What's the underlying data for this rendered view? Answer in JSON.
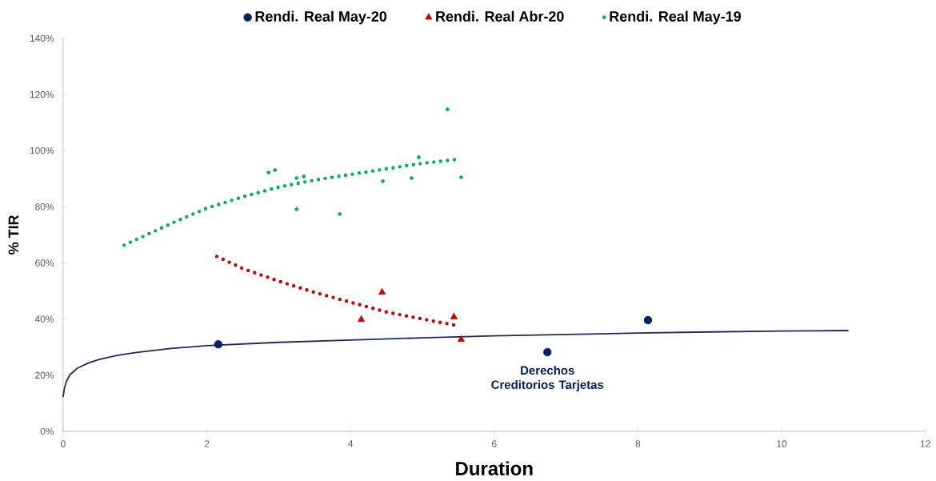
{
  "chart_data": {
    "type": "scatter",
    "xlabel": "Duration",
    "ylabel": "% TIR",
    "legend": "top",
    "grid": false,
    "xlim": [
      0,
      12
    ],
    "xticks": [
      0,
      2,
      4,
      6,
      8,
      10,
      12
    ],
    "ylim": [
      0,
      140
    ],
    "yticks": [
      {
        "value": 0,
        "label": "0%"
      },
      {
        "value": 20,
        "label": "20%"
      },
      {
        "value": 40,
        "label": "40%"
      },
      {
        "value": 60,
        "label": "60%"
      },
      {
        "value": 80,
        "label": "80%"
      },
      {
        "value": 100,
        "label": "100%"
      },
      {
        "value": 120,
        "label": "120%"
      },
      {
        "value": 140,
        "label": "140%"
      }
    ],
    "series": [
      {
        "name": "Rendi. Real May-20",
        "marker": "circle",
        "color": "#002060",
        "x": [
          2.16,
          6.74,
          8.14
        ],
        "values": [
          31.0,
          28.2,
          39.6
        ]
      },
      {
        "name": "Rendi. Real Abr-20",
        "marker": "triangle",
        "color": "#c00000",
        "x": [
          4.15,
          4.44,
          5.44,
          5.54
        ],
        "values": [
          39.8,
          49.5,
          40.7,
          32.7
        ]
      },
      {
        "name": "Rendi. Real May-19",
        "marker": "circle",
        "color": "#00b050",
        "x": [
          2.86,
          2.95,
          3.25,
          3.35,
          3.25,
          3.85,
          4.45,
          4.85,
          4.95,
          5.35,
          5.54
        ],
        "values": [
          92.2,
          93.1,
          90.2,
          90.8,
          79.1,
          77.4,
          89.1,
          90.2,
          97.6,
          114.7,
          90.5
        ]
      },
      {
        "type": "line",
        "marker": "none",
        "line_style": "solid",
        "color": "#1f2a5c",
        "x": [
          0,
          0.02,
          0.05,
          0.1,
          0.2,
          0.35,
          0.5,
          0.75,
          1,
          1.5,
          2,
          3,
          4,
          5,
          6,
          7,
          8,
          9,
          10,
          10.93
        ],
        "values": [
          12.2,
          15.5,
          18,
          20.3,
          22.5,
          24.3,
          25.6,
          27,
          28,
          29.5,
          30.5,
          31.7,
          32.5,
          33.3,
          34,
          34.5,
          35,
          35.4,
          35.7,
          35.9
        ]
      },
      {
        "type": "line",
        "marker": "none",
        "line_style": "dotted",
        "color": "#00b050",
        "x": [
          0.85,
          1.5,
          2,
          2.5,
          3,
          3.5,
          4,
          4.5,
          5,
          5.46
        ],
        "values": [
          66.3,
          74,
          79.5,
          83.5,
          87,
          89.5,
          91.5,
          93.5,
          95.5,
          96.8
        ]
      },
      {
        "type": "line",
        "marker": "none",
        "line_style": "dotted",
        "color": "#c00000",
        "x": [
          2.14,
          2.5,
          3,
          3.5,
          4,
          4.5,
          5,
          5.5
        ],
        "values": [
          62.3,
          58,
          53.5,
          49.5,
          46,
          42.5,
          40,
          37.6
        ]
      }
    ],
    "annotations": [
      {
        "text": "Derechos Creditorios Tarjetas",
        "x": 6.74,
        "y": 28.2
      }
    ]
  }
}
